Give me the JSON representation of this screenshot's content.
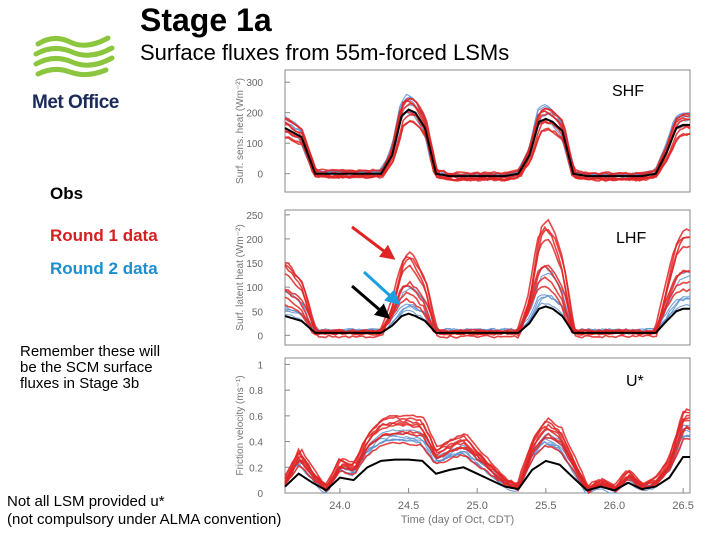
{
  "header": {
    "title": "Stage 1a",
    "subtitle": "Surface fluxes from 55m-forced LSMs",
    "logo_text": "Met Office"
  },
  "legend": {
    "obs": "Obs",
    "round1": "Round 1 data",
    "round2": "Round 2 data"
  },
  "note": [
    "Remember these will",
    "be the SCM surface",
    "fluxes in Stage 3b"
  ],
  "footnote": [
    "Not all LSM provided u*",
    "(not compulsory under ALMA convention)"
  ],
  "colors": {
    "obs": "#000000",
    "round1": "#e02424",
    "round2": "#5a8fd0",
    "logo_green": "#8cc63f",
    "logo_navy": "#1a2a5a"
  },
  "chart_data": [
    {
      "type": "line",
      "label": "SHF",
      "ylabel": "Surf. sens. heat (Wm⁻²)",
      "yticks": [
        0,
        100,
        200,
        300
      ],
      "ylim": [
        -60,
        340
      ],
      "xlim": [
        23.6,
        26.55
      ],
      "series": [
        {
          "name": "Obs",
          "x": [
            23.6,
            23.72,
            23.82,
            24.0,
            24.2,
            24.3,
            24.38,
            24.45,
            24.5,
            24.55,
            24.62,
            24.7,
            24.8,
            25.0,
            25.2,
            25.3,
            25.38,
            25.45,
            25.5,
            25.55,
            25.62,
            25.7,
            25.8,
            26.0,
            26.2,
            26.3,
            26.38,
            26.45,
            26.5,
            26.55
          ],
          "y": [
            150,
            120,
            0,
            0,
            0,
            0,
            60,
            190,
            210,
            200,
            150,
            0,
            -8,
            -8,
            -8,
            0,
            60,
            170,
            180,
            170,
            140,
            0,
            -8,
            -8,
            -8,
            0,
            70,
            150,
            160,
            160
          ]
        }
      ]
    },
    {
      "type": "line",
      "label": "LHF",
      "ylabel": "Surf. latent heat (Wm⁻²)",
      "yticks": [
        0,
        50,
        100,
        150,
        200,
        250
      ],
      "ylim": [
        -20,
        260
      ],
      "xlim": [
        23.6,
        26.55
      ],
      "series": [
        {
          "name": "Obs",
          "x": [
            23.6,
            23.72,
            23.82,
            24.0,
            24.2,
            24.3,
            24.38,
            24.45,
            24.5,
            24.55,
            24.62,
            24.7,
            24.8,
            25.0,
            25.2,
            25.3,
            25.38,
            25.45,
            25.5,
            25.55,
            25.62,
            25.7,
            25.8,
            26.0,
            26.2,
            26.3,
            26.38,
            26.45,
            26.5,
            26.55
          ],
          "y": [
            40,
            30,
            5,
            5,
            5,
            5,
            20,
            40,
            45,
            40,
            30,
            5,
            5,
            5,
            5,
            5,
            25,
            55,
            60,
            55,
            40,
            5,
            5,
            5,
            5,
            5,
            30,
            50,
            55,
            55
          ]
        }
      ]
    },
    {
      "type": "line",
      "label": "U*",
      "ylabel": "Friction velocity (ms⁻¹)",
      "yticks": [
        0,
        0.2,
        0.4,
        0.6,
        0.8,
        1.0
      ],
      "ylim": [
        0,
        1.05
      ],
      "xlim": [
        23.6,
        26.55
      ],
      "xticks": [
        24.0,
        24.5,
        25.0,
        25.5,
        26.0,
        26.5
      ],
      "xticklabels": [
        "24.0",
        "24.5",
        "25.0",
        "25.5",
        "26.0",
        "26.5"
      ],
      "xlabel": "Time (day of Oct, CDT)",
      "series": [
        {
          "name": "Obs",
          "x": [
            23.6,
            23.7,
            23.8,
            23.9,
            24.0,
            24.1,
            24.2,
            24.3,
            24.4,
            24.5,
            24.6,
            24.7,
            24.8,
            24.9,
            25.0,
            25.1,
            25.2,
            25.3,
            25.4,
            25.5,
            25.6,
            25.7,
            25.8,
            25.9,
            26.0,
            26.1,
            26.2,
            26.3,
            26.4,
            26.5,
            26.55
          ],
          "y": [
            0.05,
            0.15,
            0.08,
            0.02,
            0.12,
            0.1,
            0.2,
            0.25,
            0.26,
            0.26,
            0.25,
            0.15,
            0.18,
            0.2,
            0.15,
            0.1,
            0.05,
            0.03,
            0.18,
            0.25,
            0.22,
            0.12,
            0.02,
            0.05,
            0.02,
            0.08,
            0.03,
            0.05,
            0.12,
            0.28,
            0.28
          ]
        }
      ]
    }
  ]
}
